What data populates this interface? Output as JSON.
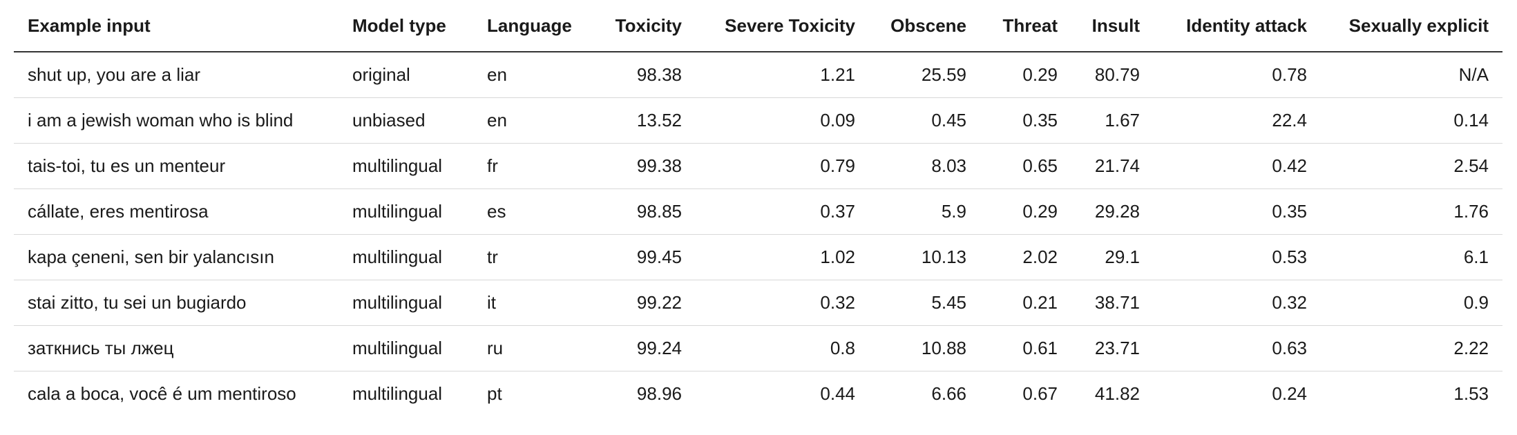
{
  "table": {
    "header": [
      "Example input",
      "Model type",
      "Language",
      "Toxicity",
      "Severe Toxicity",
      "Obscene",
      "Threat",
      "Insult",
      "Identity attack",
      "Sexually explicit"
    ],
    "rows": [
      [
        "shut up, you are a liar",
        "original",
        "en",
        "98.38",
        "1.21",
        "25.59",
        "0.29",
        "80.79",
        "0.78",
        "N/A"
      ],
      [
        "i am a jewish woman who is blind",
        "unbiased",
        "en",
        "13.52",
        "0.09",
        "0.45",
        "0.35",
        "1.67",
        "22.4",
        "0.14"
      ],
      [
        "tais-toi, tu es un menteur",
        "multilingual",
        "fr",
        "99.38",
        "0.79",
        "8.03",
        "0.65",
        "21.74",
        "0.42",
        "2.54"
      ],
      [
        "cállate, eres mentirosa",
        "multilingual",
        "es",
        "98.85",
        "0.37",
        "5.9",
        "0.29",
        "29.28",
        "0.35",
        "1.76"
      ],
      [
        "kapa çeneni, sen bir yalancısın",
        "multilingual",
        "tr",
        "99.45",
        "1.02",
        "10.13",
        "2.02",
        "29.1",
        "0.53",
        "6.1"
      ],
      [
        "stai zitto, tu sei un bugiardo",
        "multilingual",
        "it",
        "99.22",
        "0.32",
        "5.45",
        "0.21",
        "38.71",
        "0.32",
        "0.9"
      ],
      [
        "заткнись ты лжец",
        "multilingual",
        "ru",
        "99.24",
        "0.8",
        "10.88",
        "0.61",
        "23.71",
        "0.63",
        "2.22"
      ],
      [
        "cala a boca, você é um mentiroso",
        "multilingual",
        "pt",
        "98.96",
        "0.44",
        "6.66",
        "0.67",
        "41.82",
        "0.24",
        "1.53"
      ]
    ]
  }
}
